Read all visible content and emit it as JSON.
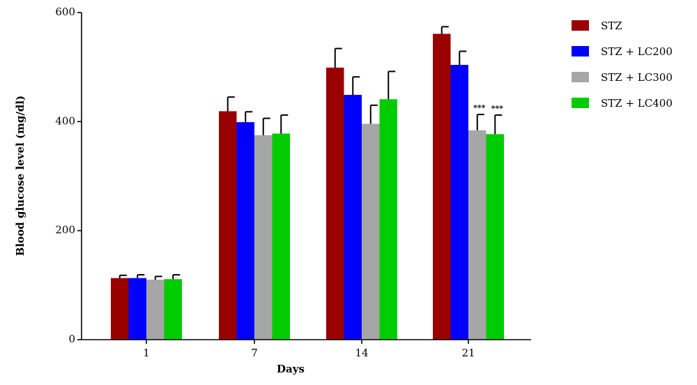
{
  "chart_data": {
    "type": "bar",
    "title": "",
    "xlabel": "Days",
    "ylabel": "Blood glucose level (mg/dl)",
    "categories": [
      "1",
      "7",
      "14",
      "21"
    ],
    "ylim": [
      0,
      600
    ],
    "yticks": [
      "0",
      "200",
      "400",
      "600"
    ],
    "grid": false,
    "legend_position": "top-right",
    "series": [
      {
        "name": "STZ",
        "color": "#990000",
        "values": [
          113,
          419,
          499,
          561
        ],
        "errors": [
          5,
          26,
          35,
          13
        ]
      },
      {
        "name": "STZ + LC200",
        "color": "#0000ff",
        "values": [
          113,
          399,
          449,
          504
        ],
        "errors": [
          6,
          19,
          33,
          25
        ]
      },
      {
        "name": "STZ + LC300",
        "color": "#a6a6a6",
        "values": [
          110,
          375,
          396,
          384
        ],
        "errors": [
          6,
          31,
          34,
          29
        ]
      },
      {
        "name": "STZ + LC400",
        "color": "#00cc00",
        "values": [
          111,
          378,
          441,
          377
        ],
        "errors": [
          8,
          34,
          51,
          35
        ]
      }
    ],
    "annotations": [
      {
        "category": "21",
        "series": "STZ + LC300",
        "text": "***"
      },
      {
        "category": "21",
        "series": "STZ + LC400",
        "text": "***"
      }
    ]
  }
}
